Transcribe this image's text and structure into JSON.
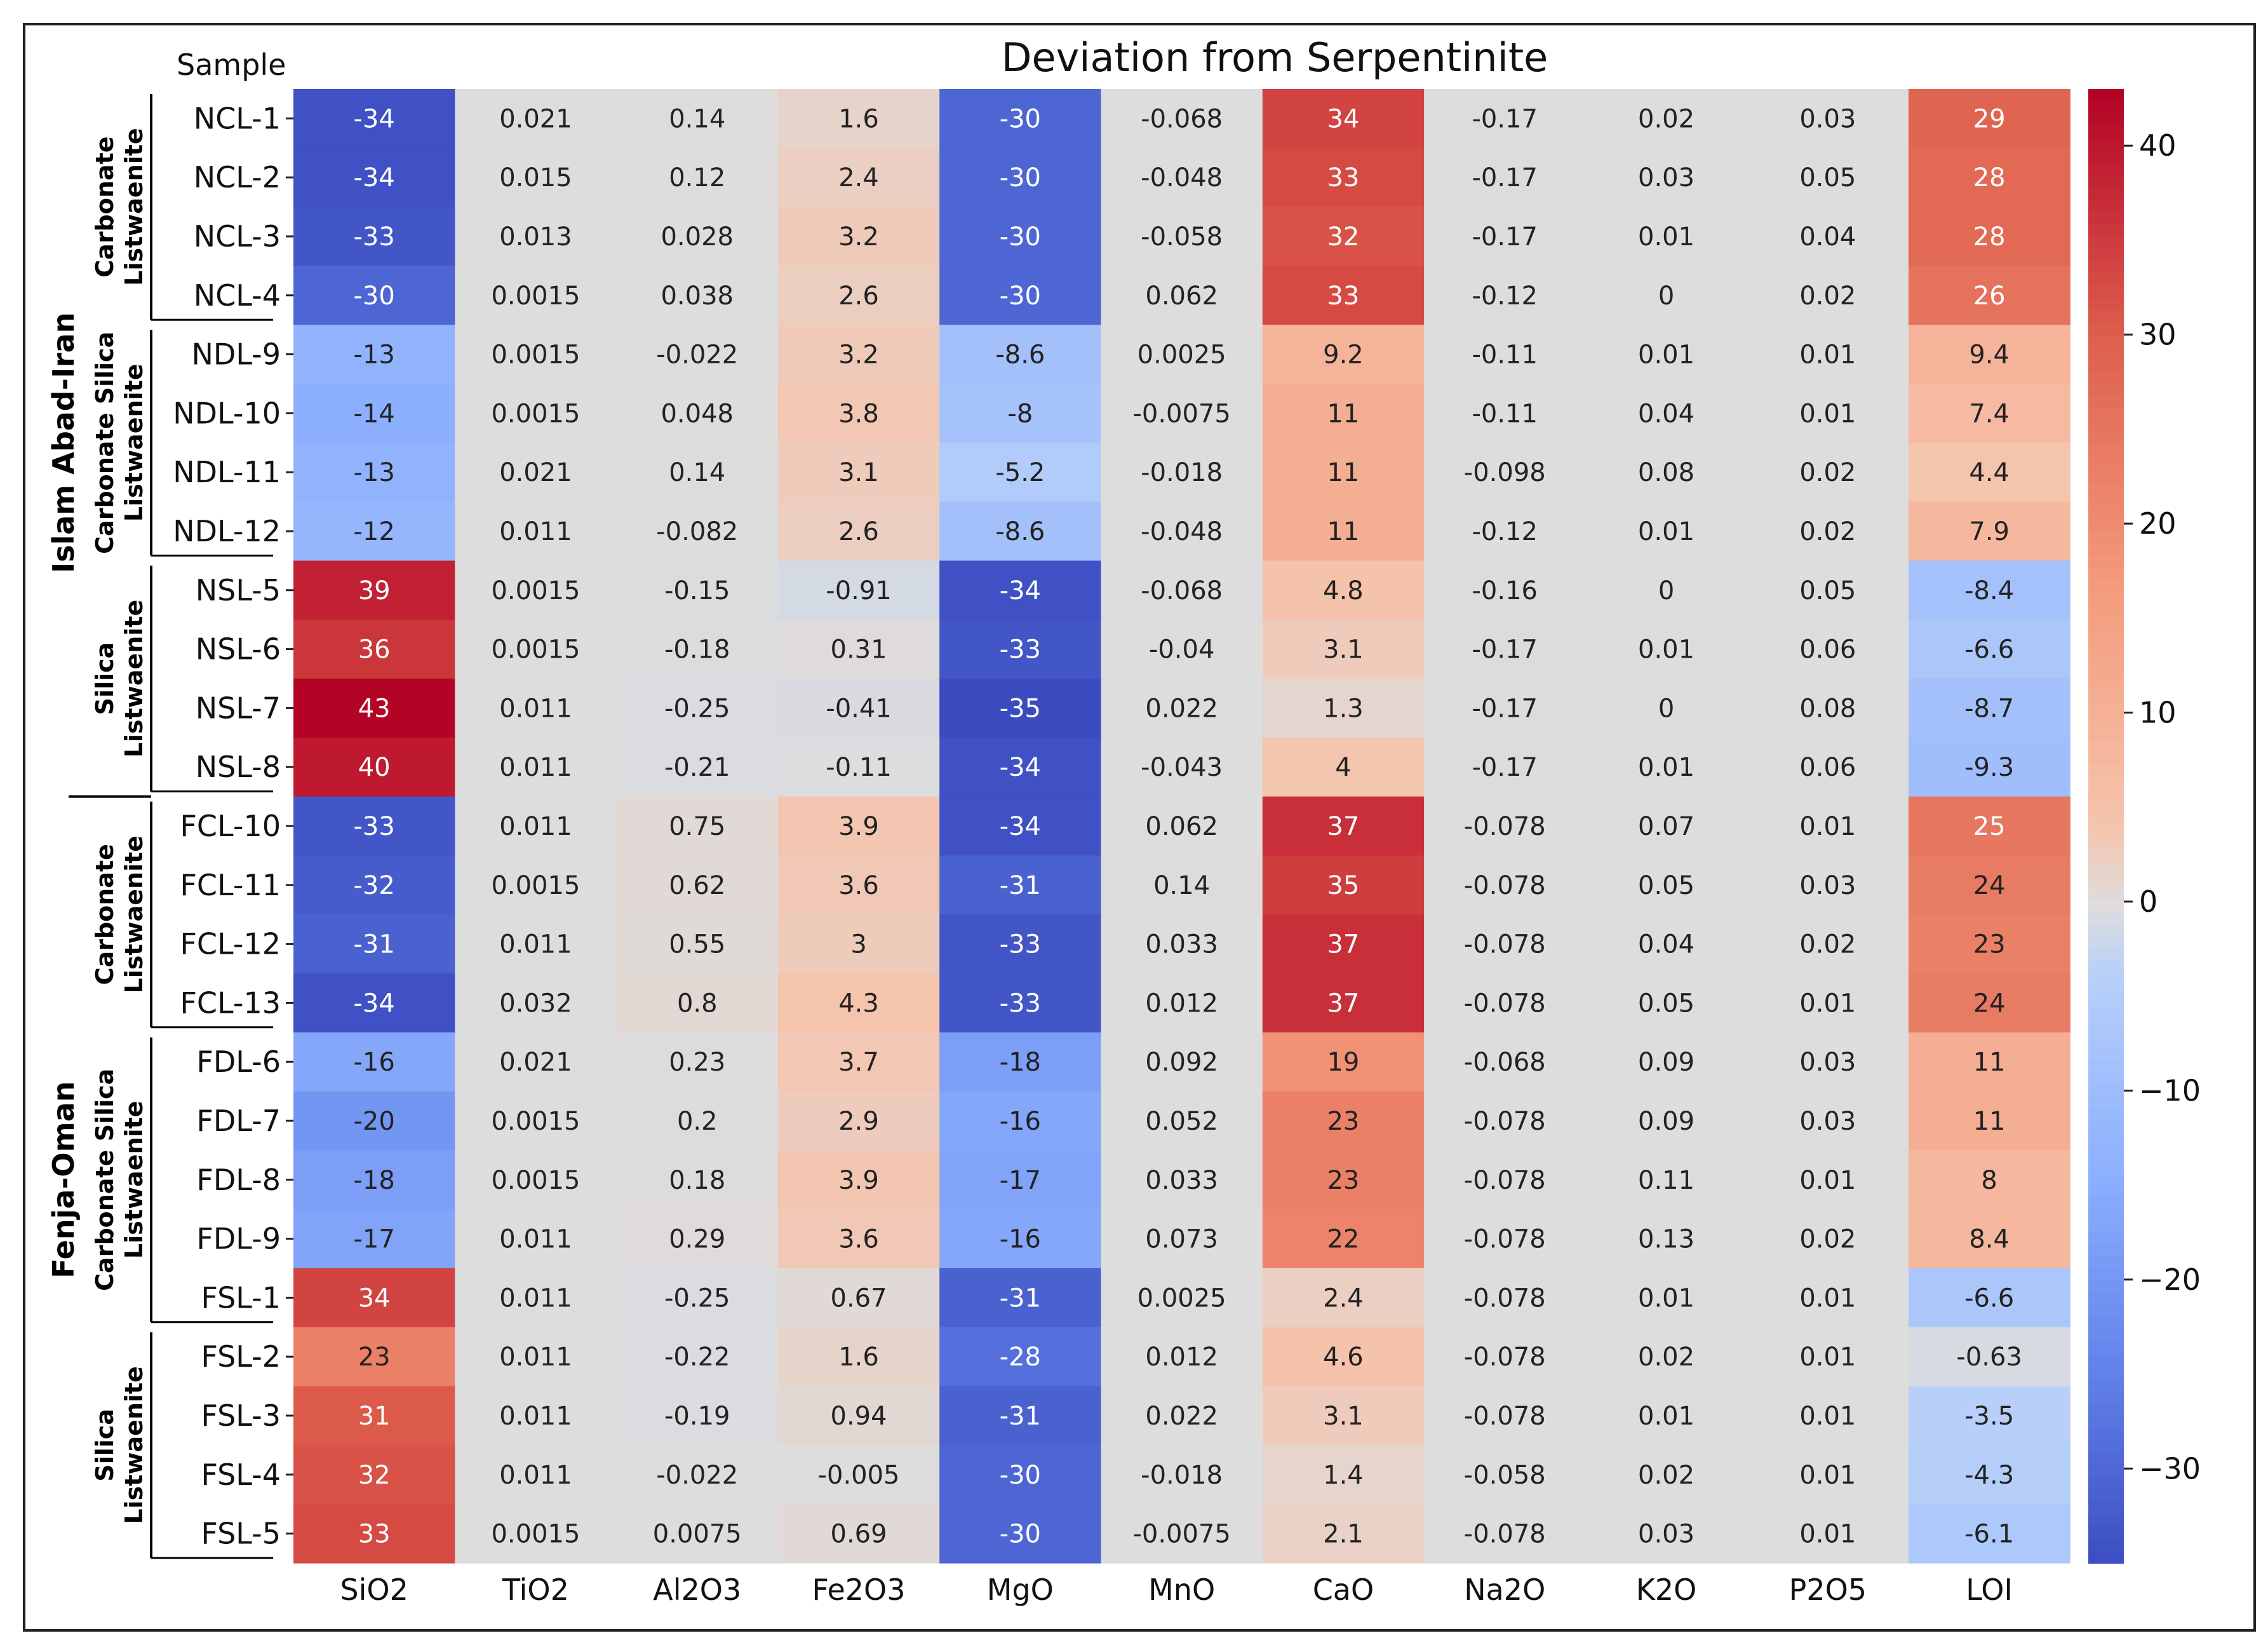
{
  "chart_data": {
    "type": "heatmap",
    "title": "Deviation from Serpentinite",
    "row_header": "Sample",
    "columns": [
      "SiO2",
      "TiO2",
      "Al2O3",
      "Fe2O3",
      "MgO",
      "MnO",
      "CaO",
      "Na2O",
      "K2O",
      "P2O5",
      "LOI"
    ],
    "rows": [
      "NCL-1",
      "NCL-2",
      "NCL-3",
      "NCL-4",
      "NDL-9",
      "NDL-10",
      "NDL-11",
      "NDL-12",
      "NSL-5",
      "NSL-6",
      "NSL-7",
      "NSL-8",
      "FCL-10",
      "FCL-11",
      "FCL-12",
      "FCL-13",
      "FDL-6",
      "FDL-7",
      "FDL-8",
      "FDL-9",
      "FSL-1",
      "FSL-2",
      "FSL-3",
      "FSL-4",
      "FSL-5"
    ],
    "values": [
      [
        -34,
        0.021,
        0.14,
        1.6,
        -30,
        -0.068,
        34,
        -0.17,
        0.02,
        0.03,
        29
      ],
      [
        -34,
        0.015,
        0.12,
        2.4,
        -30,
        -0.048,
        33,
        -0.17,
        0.03,
        0.05,
        28
      ],
      [
        -33,
        0.013,
        0.028,
        3.2,
        -30,
        -0.058,
        32,
        -0.17,
        0.01,
        0.04,
        28
      ],
      [
        -30,
        0.0015,
        0.038,
        2.6,
        -30,
        0.062,
        33,
        -0.12,
        0,
        0.02,
        26
      ],
      [
        -13,
        0.0015,
        -0.022,
        3.2,
        -8.6,
        0.0025,
        9.2,
        -0.11,
        0.01,
        0.01,
        9.4
      ],
      [
        -14,
        0.0015,
        0.048,
        3.8,
        -8,
        -0.0075,
        11,
        -0.11,
        0.04,
        0.01,
        7.4
      ],
      [
        -13,
        0.021,
        0.14,
        3.1,
        -5.2,
        -0.018,
        11,
        -0.098,
        0.08,
        0.02,
        4.4
      ],
      [
        -12,
        0.011,
        -0.082,
        2.6,
        -8.6,
        -0.048,
        11,
        -0.12,
        0.01,
        0.02,
        7.9
      ],
      [
        39,
        0.0015,
        -0.15,
        -0.91,
        -34,
        -0.068,
        4.8,
        -0.16,
        0,
        0.05,
        -8.4
      ],
      [
        36,
        0.0015,
        -0.18,
        0.31,
        -33,
        -0.04,
        3.1,
        -0.17,
        0.01,
        0.06,
        -6.6
      ],
      [
        43,
        0.011,
        -0.25,
        -0.41,
        -35,
        0.022,
        1.3,
        -0.17,
        0,
        0.08,
        -8.7
      ],
      [
        40,
        0.011,
        -0.21,
        -0.11,
        -34,
        -0.043,
        4,
        -0.17,
        0.01,
        0.06,
        -9.3
      ],
      [
        -33,
        0.011,
        0.75,
        3.9,
        -34,
        0.062,
        37,
        -0.078,
        0.07,
        0.01,
        25
      ],
      [
        -32,
        0.0015,
        0.62,
        3.6,
        -31,
        0.14,
        35,
        -0.078,
        0.05,
        0.03,
        24
      ],
      [
        -31,
        0.011,
        0.55,
        3,
        -33,
        0.033,
        37,
        -0.078,
        0.04,
        0.02,
        23
      ],
      [
        -34,
        0.032,
        0.8,
        4.3,
        -33,
        0.012,
        37,
        -0.078,
        0.05,
        0.01,
        24
      ],
      [
        -16,
        0.021,
        0.23,
        3.7,
        -18,
        0.092,
        19,
        -0.068,
        0.09,
        0.03,
        11
      ],
      [
        -20,
        0.0015,
        0.2,
        2.9,
        -16,
        0.052,
        23,
        -0.078,
        0.09,
        0.03,
        11
      ],
      [
        -18,
        0.0015,
        0.18,
        3.9,
        -17,
        0.033,
        23,
        -0.078,
        0.11,
        0.01,
        8
      ],
      [
        -17,
        0.011,
        0.29,
        3.6,
        -16,
        0.073,
        22,
        -0.078,
        0.13,
        0.02,
        8.4
      ],
      [
        34,
        0.011,
        -0.25,
        0.67,
        -31,
        0.0025,
        2.4,
        -0.078,
        0.01,
        0.01,
        -6.6
      ],
      [
        23,
        0.011,
        -0.22,
        1.6,
        -28,
        0.012,
        4.6,
        -0.078,
        0.02,
        0.01,
        -0.63
      ],
      [
        31,
        0.011,
        -0.19,
        0.94,
        -31,
        0.022,
        3.1,
        -0.078,
        0.01,
        0.01,
        -3.5
      ],
      [
        32,
        0.011,
        -0.022,
        -0.005,
        -30,
        -0.018,
        1.4,
        -0.058,
        0.02,
        0.01,
        -4.3
      ],
      [
        33,
        0.0015,
        0.0075,
        0.69,
        -30,
        -0.0075,
        2.1,
        -0.078,
        0.03,
        0.01,
        -6.1
      ]
    ],
    "value_range": [
      -35,
      43
    ],
    "colormap": "coolwarm",
    "colorbar": {
      "ticks": [
        40,
        30,
        20,
        10,
        0,
        -10,
        -20,
        -30
      ],
      "tick_labels": [
        "40",
        "30",
        "20",
        "10",
        "0",
        "−10",
        "−20",
        "−30"
      ]
    },
    "outer_groups": [
      {
        "label": "Islam Abad-Iran",
        "row_start": 0,
        "row_end": 11
      },
      {
        "label": "Fenja-Oman",
        "row_start": 12,
        "row_end": 24
      }
    ],
    "inner_groups": [
      {
        "lines": [
          "Carbonate",
          "Listwaenite"
        ],
        "row_start": 0,
        "row_end": 3
      },
      {
        "lines": [
          "Carbonate Silica",
          "Listwaenite"
        ],
        "row_start": 4,
        "row_end": 7
      },
      {
        "lines": [
          "Silica",
          "Listwaenite"
        ],
        "row_start": 8,
        "row_end": 11
      },
      {
        "lines": [
          "Carbonate",
          "Listwaenite"
        ],
        "row_start": 12,
        "row_end": 15
      },
      {
        "lines": [
          "Carbonate Silica",
          "Listwaenite"
        ],
        "row_start": 16,
        "row_end": 20
      },
      {
        "lines": [
          "Silica",
          "Listwaenite"
        ],
        "row_start": 21,
        "row_end": 24
      }
    ],
    "colors": {
      "cold": "#3b4cc0",
      "neutral": "#dddddd",
      "hot": "#b40426"
    }
  }
}
